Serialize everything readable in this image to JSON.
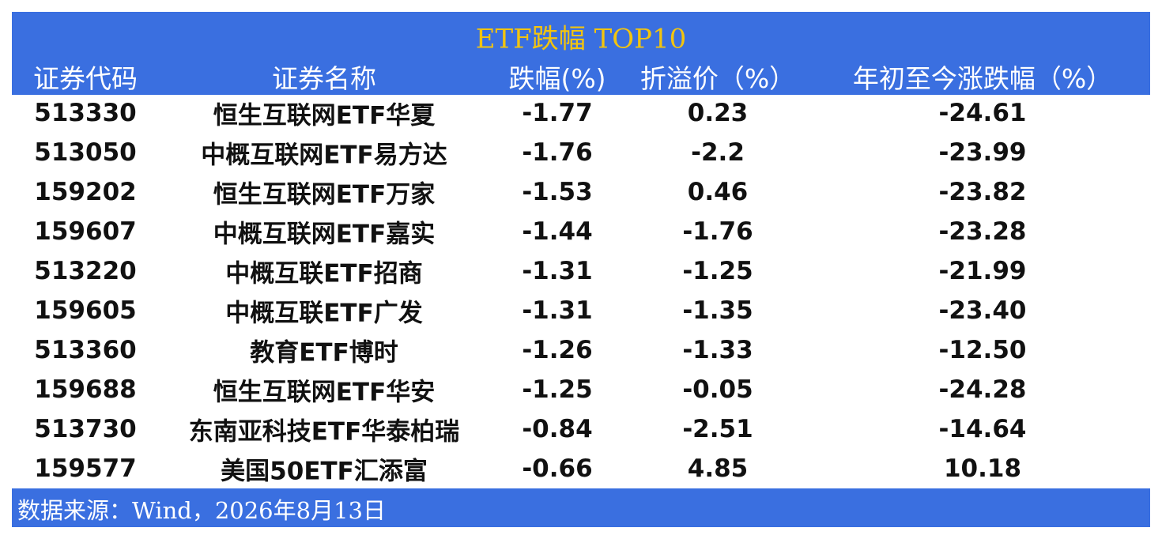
{
  "header": {
    "title": "ETF跌幅 TOP10"
  },
  "table": {
    "columns": [
      "证券代码",
      "证券名称",
      "跌幅(%)",
      "折溢价（%）",
      "年初至今涨跌幅（%）"
    ],
    "rows": [
      [
        "513330",
        "恒生互联网ETF华夏",
        "-1.77",
        "0.23",
        "-24.61"
      ],
      [
        "513050",
        "中概互联网ETF易方达",
        "-1.76",
        "-2.2",
        "-23.99"
      ],
      [
        "159202",
        "恒生互联网ETF万家",
        "-1.53",
        "0.46",
        "-23.82"
      ],
      [
        "159607",
        "中概互联网ETF嘉实",
        "-1.44",
        "-1.76",
        "-23.28"
      ],
      [
        "513220",
        "中概互联ETF招商",
        "-1.31",
        "-1.25",
        "-21.99"
      ],
      [
        "159605",
        "中概互联ETF广发",
        "-1.31",
        "-1.35",
        "-23.40"
      ],
      [
        "513360",
        "教育ETF博时",
        "-1.26",
        "-1.33",
        "-12.50"
      ],
      [
        "159688",
        "恒生互联网ETF华安",
        "-1.25",
        "-0.05",
        "-24.28"
      ],
      [
        "513730",
        "东南亚科技ETF华泰柏瑞",
        "-0.84",
        "-2.51",
        "-14.64"
      ],
      [
        "159577",
        "美国50ETF汇添富",
        "-0.66",
        "4.85",
        "10.18"
      ]
    ]
  },
  "footer": {
    "source": "数据来源：Wind，2026年8月13日"
  }
}
